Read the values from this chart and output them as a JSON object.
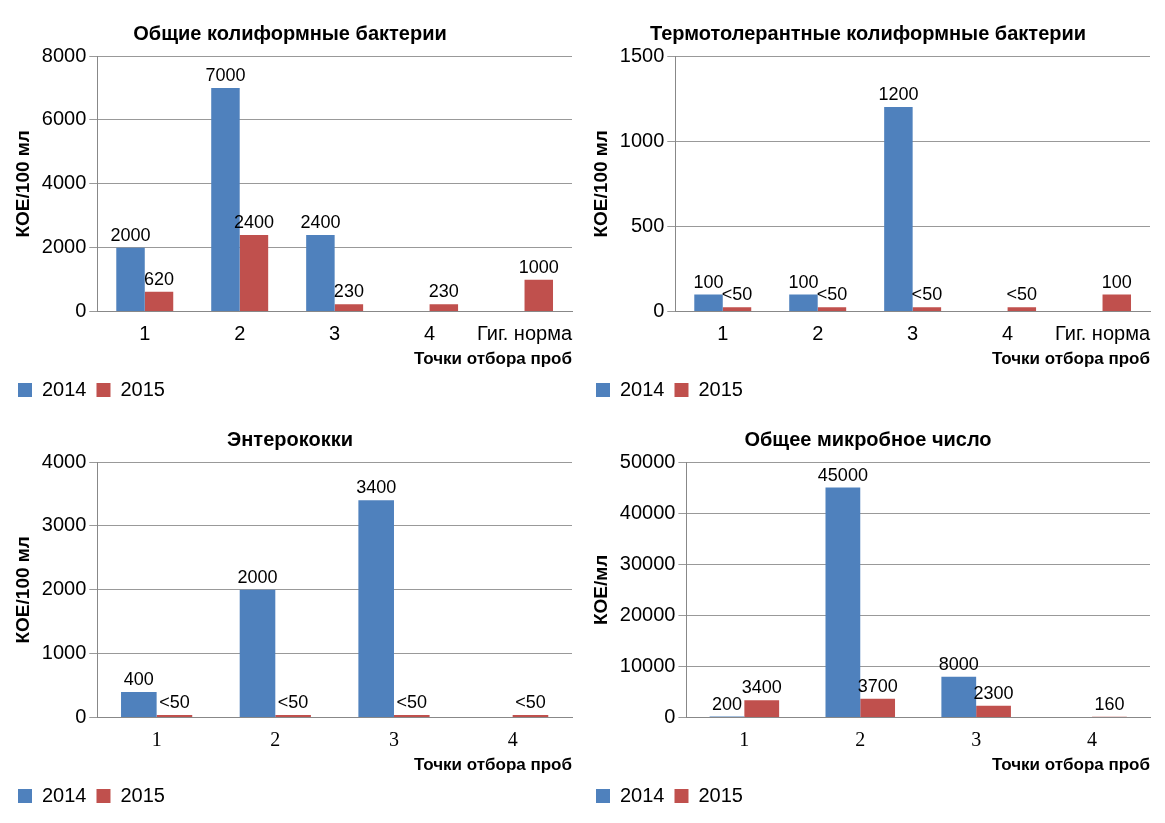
{
  "chart_data": [
    {
      "type": "bar",
      "title": "Общие колиформные бактерии",
      "ylabel": "КОЕ/100 мл",
      "xlabel": "Точки отбора проб",
      "categories": [
        "1",
        "2",
        "3",
        "4",
        "Гиг. норма"
      ],
      "series": [
        {
          "name": "2014",
          "color": "#4f81bd",
          "values": [
            2000,
            7000,
            2400,
            null,
            null
          ]
        },
        {
          "name": "2015",
          "color": "#c0504d",
          "values": [
            620,
            2400,
            230,
            230,
            1000
          ]
        }
      ],
      "ylim": [
        0,
        8000
      ],
      "yticks": [
        0,
        2000,
        4000,
        6000,
        8000
      ],
      "grid": "y",
      "legend": "bottom left",
      "data_labels": true
    },
    {
      "type": "bar",
      "title": "Термотолерантные колиформные бактерии",
      "ylabel": "КОЕ/100 мл",
      "xlabel": "Точки отбора проб",
      "categories": [
        "1",
        "2",
        "3",
        "4",
        "Гиг. норма"
      ],
      "series": [
        {
          "name": "2014",
          "color": "#4f81bd",
          "values": [
            100,
            100,
            1200,
            null,
            null
          ],
          "value_labels": [
            "100",
            "100",
            "1200",
            null,
            null
          ]
        },
        {
          "name": "2015",
          "color": "#c0504d",
          "values": [
            25,
            25,
            25,
            25,
            100
          ],
          "value_labels": [
            "<50",
            "<50",
            "<50",
            "<50",
            "100"
          ]
        }
      ],
      "ylim": [
        0,
        1500
      ],
      "yticks": [
        0,
        500,
        1000,
        1500
      ],
      "grid": "y",
      "legend": "bottom left"
    },
    {
      "type": "bar",
      "title": "Энтерококки",
      "ylabel": "КОЕ/100 мл",
      "xlabel": "Точки отбора проб",
      "categories": [
        "1",
        "2",
        "3",
        "4"
      ],
      "series": [
        {
          "name": "2014",
          "color": "#4f81bd",
          "values": [
            400,
            2000,
            3400,
            null
          ],
          "value_labels": [
            "400",
            "2000",
            "3400",
            null
          ]
        },
        {
          "name": "2015",
          "color": "#c0504d",
          "values": [
            40,
            40,
            40,
            40
          ],
          "value_labels": [
            "<50",
            "<50",
            "<50",
            "<50"
          ]
        }
      ],
      "ylim": [
        0,
        4000
      ],
      "yticks": [
        0,
        1000,
        2000,
        3000,
        4000
      ],
      "grid": "y",
      "legend": "bottom left"
    },
    {
      "type": "bar",
      "title": "Общее микробное число",
      "ylabel": "КОЕ/мл",
      "xlabel": "Точки отбора проб",
      "categories": [
        "1",
        "2",
        "3",
        "4"
      ],
      "series": [
        {
          "name": "2014",
          "color": "#4f81bd",
          "values": [
            200,
            45000,
            8000,
            null
          ]
        },
        {
          "name": "2015",
          "color": "#c0504d",
          "values": [
            3400,
            3700,
            2300,
            160
          ]
        }
      ],
      "ylim": [
        0,
        50000
      ],
      "yticks": [
        0,
        10000,
        20000,
        30000,
        40000,
        50000
      ],
      "grid": "y",
      "legend": "bottom left",
      "data_labels": true
    }
  ]
}
